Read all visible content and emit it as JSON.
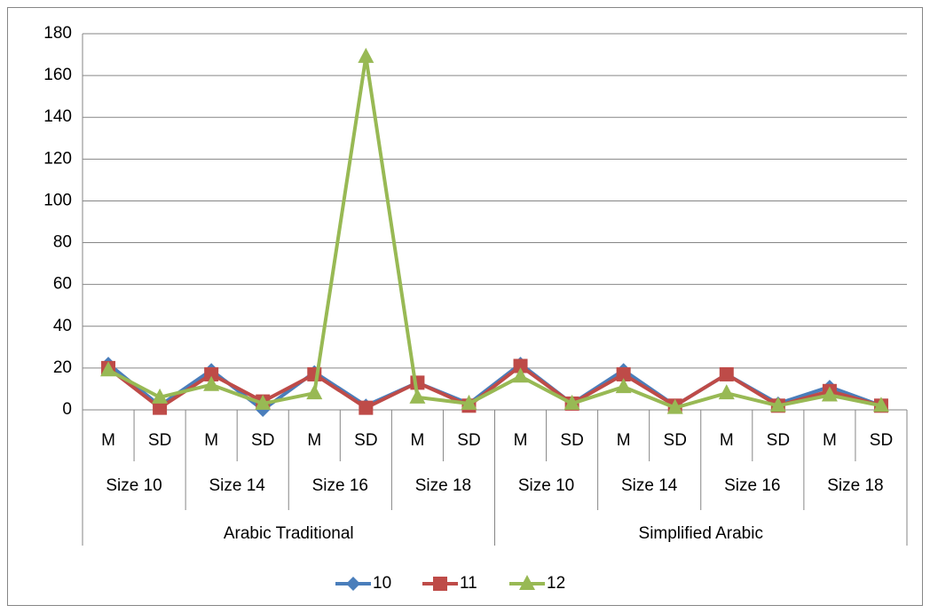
{
  "chart_data": {
    "type": "line",
    "categories": [
      "M",
      "SD",
      "M",
      "SD",
      "M",
      "SD",
      "M",
      "SD",
      "M",
      "SD",
      "M",
      "SD",
      "M",
      "SD",
      "M",
      "SD"
    ],
    "groups": [
      "Size 10",
      "Size 14",
      "Size 16",
      "Size 18",
      "Size 10",
      "Size 14",
      "Size 16",
      "Size 18"
    ],
    "supergroups": [
      "Arabic Traditional",
      "Simplified Arabic"
    ],
    "series": [
      {
        "name": "10",
        "color": "#4a7ebb",
        "marker": "diamond",
        "values": [
          22,
          2,
          19,
          0,
          18,
          2,
          13,
          3,
          22,
          3,
          19,
          2,
          17,
          3,
          11,
          2
        ]
      },
      {
        "name": "11",
        "color": "#be4b48",
        "marker": "square",
        "values": [
          20,
          1,
          17,
          4,
          17,
          1,
          13,
          2,
          21,
          3,
          17,
          2,
          17,
          2,
          9,
          2
        ]
      },
      {
        "name": "12",
        "color": "#98b954",
        "marker": "triangle",
        "values": [
          19,
          6,
          12,
          3,
          8,
          169,
          6,
          3,
          16,
          3,
          11,
          1,
          8,
          2,
          7,
          2
        ]
      }
    ],
    "ylim": [
      0,
      180
    ],
    "yticks": [
      0,
      20,
      40,
      60,
      80,
      100,
      120,
      140,
      160,
      180
    ],
    "grid": true,
    "legend": "bottom"
  }
}
